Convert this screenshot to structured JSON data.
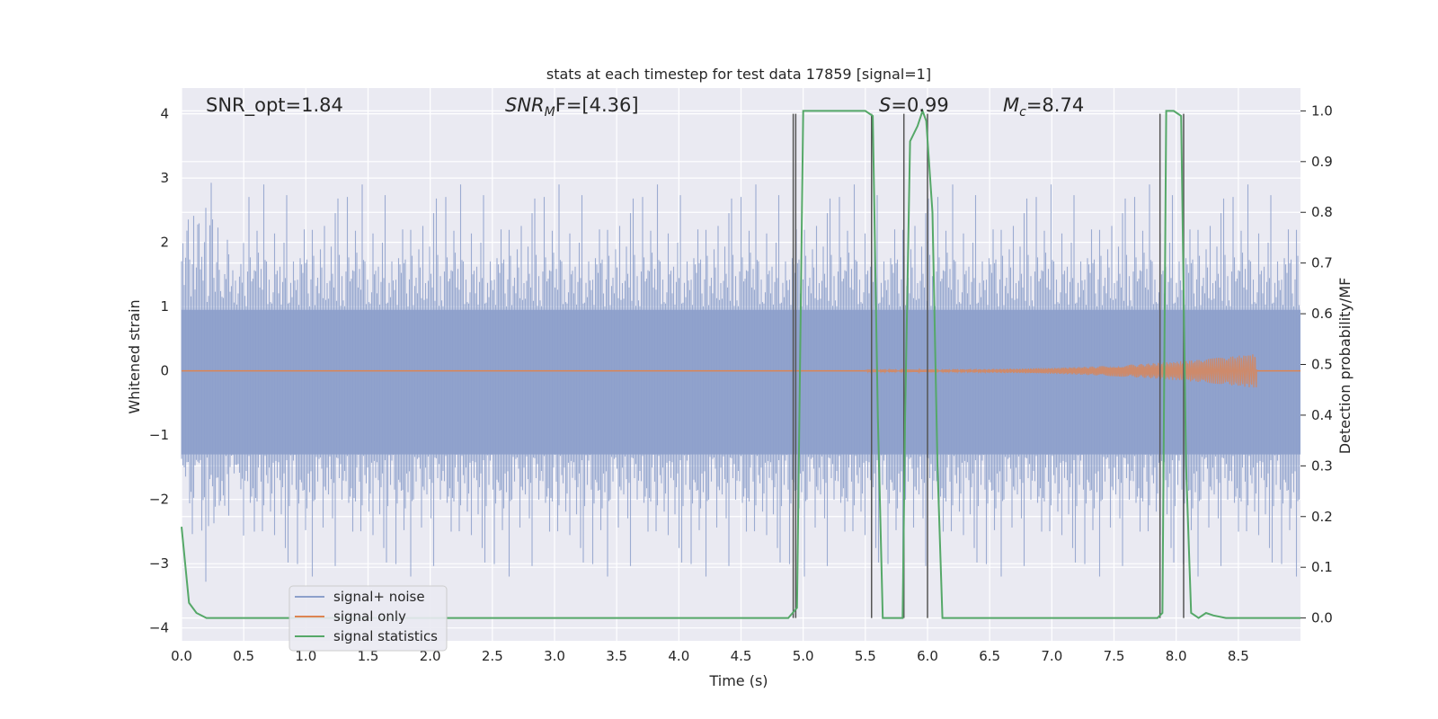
{
  "chart_data": {
    "type": "line",
    "title": "stats at each timestep for test data 17859 [signal=1]",
    "xlabel": "Time (s)",
    "ylabel_left": "Whitened strain",
    "ylabel_right": "Detection probability/MF",
    "xlim": [
      0,
      9.0
    ],
    "ylim_left": [
      -4.2,
      4.4
    ],
    "ylim_right": [
      -0.045,
      1.045
    ],
    "x_ticks": [
      0.0,
      0.5,
      1.0,
      1.5,
      2.0,
      2.5,
      3.0,
      3.5,
      4.0,
      4.5,
      5.0,
      5.5,
      6.0,
      6.5,
      7.0,
      7.5,
      8.0,
      8.5
    ],
    "x_tick_labels": [
      "0.0",
      "0.5",
      "1.0",
      "1.5",
      "2.0",
      "2.5",
      "3.0",
      "3.5",
      "4.0",
      "4.5",
      "5.0",
      "5.5",
      "6.0",
      "6.5",
      "7.0",
      "7.5",
      "8.0",
      "8.5"
    ],
    "y_left_ticks": [
      4,
      3,
      2,
      1,
      0,
      -1,
      -2,
      -3,
      -4
    ],
    "y_left_tick_labels": [
      "4",
      "3",
      "2",
      "1",
      "0",
      "−1",
      "−2",
      "−3",
      "−4"
    ],
    "y_right_ticks": [
      1.0,
      0.9,
      0.8,
      0.7,
      0.6,
      0.5,
      0.4,
      0.3,
      0.2,
      0.1,
      0.0
    ],
    "y_right_tick_labels": [
      "1.0",
      "0.9",
      "0.8",
      "0.7",
      "0.6",
      "0.5",
      "0.4",
      "0.3",
      "0.2",
      "0.1",
      "0.0"
    ],
    "grid": true,
    "legend_placement": "lower-left",
    "annotations": {
      "snr_opt": "SNR_opt=1.84",
      "snr_mf_prefix": "SNR",
      "snr_mf_sub": "M",
      "snr_mf_suffix": "F=[4.36]",
      "s_prefix": "S",
      "s_suffix": "=0.99",
      "mc_prefix": "M",
      "mc_sub": "c",
      "mc_suffix": "=8.74"
    },
    "series": [
      {
        "name": "signal+ noise",
        "color": "#8da0cb",
        "description_values": "noise band approx ±1.4 dense, peaks to about ±3.3"
      },
      {
        "name": "signal only",
        "color": "#dd8452",
        "chirp_range_s": [
          5.5,
          8.65
        ],
        "max_amplitude": 0.25
      },
      {
        "name": "signal statistics",
        "color": "#55a868",
        "x": [
          0.0,
          0.06,
          0.12,
          0.2,
          1.0,
          2.0,
          3.0,
          4.0,
          4.88,
          4.95,
          5.0,
          5.5,
          5.56,
          5.6,
          5.64,
          5.7,
          5.76,
          5.8,
          5.82,
          5.86,
          5.92,
          5.96,
          5.99,
          6.04,
          6.08,
          6.12,
          6.18,
          7.0,
          7.85,
          7.89,
          7.92,
          7.98,
          8.04,
          8.08,
          8.12,
          8.18,
          8.24,
          8.3,
          8.4,
          8.8,
          9.0
        ],
        "y": [
          0.18,
          0.03,
          0.01,
          0.0,
          0.0,
          0.0,
          0.0,
          0.0,
          0.0,
          0.02,
          1.0,
          1.0,
          0.99,
          0.4,
          0.0,
          0.0,
          0.0,
          0.0,
          0.4,
          0.94,
          0.97,
          1.0,
          0.98,
          0.8,
          0.3,
          0.0,
          0.0,
          0.0,
          0.0,
          0.01,
          1.0,
          1.0,
          0.99,
          0.3,
          0.01,
          0.0,
          0.01,
          0.005,
          0.0,
          0.0,
          0.0
        ]
      }
    ],
    "vertical_lines_x": [
      4.92,
      4.94,
      5.55,
      5.81,
      6.0,
      7.87,
      8.06
    ],
    "vertical_lines_color": "#555555"
  }
}
